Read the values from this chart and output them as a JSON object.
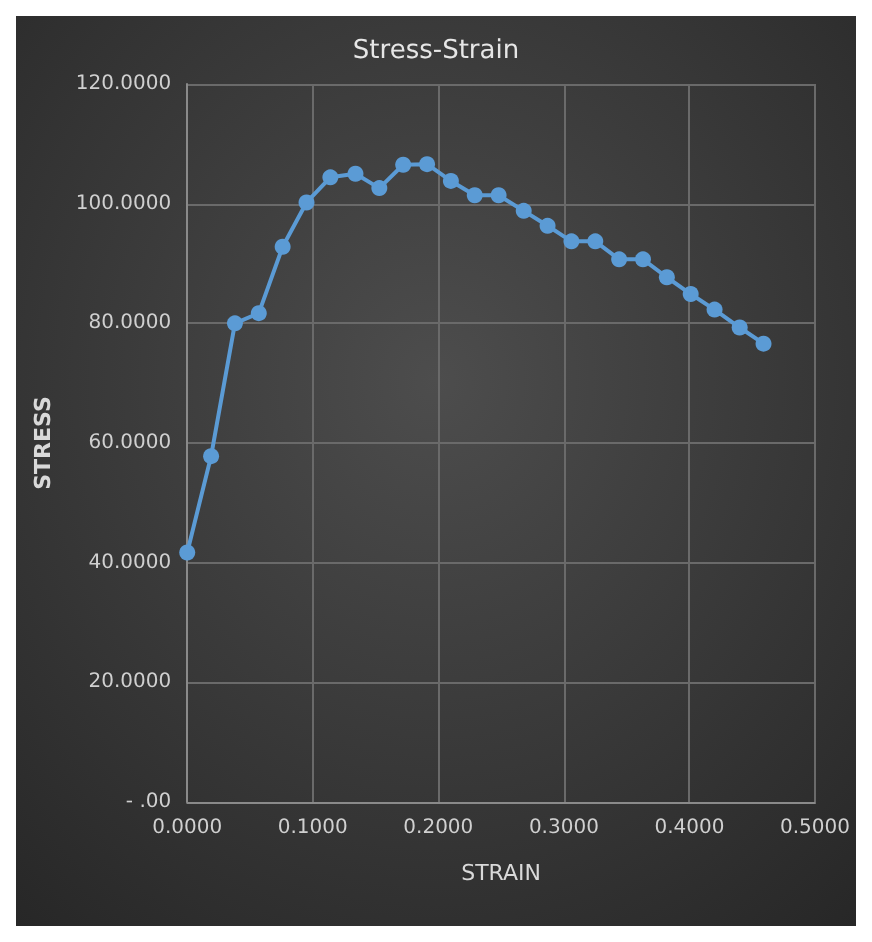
{
  "chart_data": {
    "type": "line",
    "title": "Stress-Strain",
    "xlabel": "STRAIN",
    "ylabel": "STRESS",
    "x": [
      0,
      0.019,
      0.038,
      0.057,
      0.076,
      0.095,
      0.114,
      0.134,
      0.153,
      0.172,
      0.191,
      0.21,
      0.229,
      0.248,
      0.268,
      0.287,
      0.306,
      0.325,
      0.344,
      0.363,
      0.382,
      0.401,
      0.42,
      0.44,
      0.459
    ],
    "series": [
      {
        "color": "#5b9bd5",
        "values": [
          41.7,
          57.8,
          80,
          81.7,
          92.8,
          100.2,
          104.4,
          105,
          102.6,
          106.5,
          106.6,
          103.8,
          101.4,
          101.4,
          98.8,
          96.3,
          93.7,
          93.7,
          90.7,
          90.7,
          87.7,
          84.9,
          82.3,
          79.3,
          76.6
        ]
      }
    ],
    "xlim": [
      0,
      0.5
    ],
    "xticks": [
      {
        "value": 0,
        "label": "0.0000"
      },
      {
        "value": 0.1,
        "label": "0.1000"
      },
      {
        "value": 0.2,
        "label": "0.2000"
      },
      {
        "value": 0.3,
        "label": "0.3000"
      },
      {
        "value": 0.4,
        "label": "0.4000"
      },
      {
        "value": 0.5,
        "label": "0.5000"
      }
    ],
    "ylim": [
      0,
      120
    ],
    "yticks": [
      {
        "value": 0,
        "label": "- .00"
      },
      {
        "value": 20,
        "label": "20.0000"
      },
      {
        "value": 40,
        "label": "40.0000"
      },
      {
        "value": 60,
        "label": "60.0000"
      },
      {
        "value": 80,
        "label": "80.0000"
      },
      {
        "value": 100,
        "label": "100.0000"
      },
      {
        "value": 120,
        "label": "120.0000"
      }
    ],
    "grid": true,
    "marker": "circle",
    "line_style": "solid"
  }
}
